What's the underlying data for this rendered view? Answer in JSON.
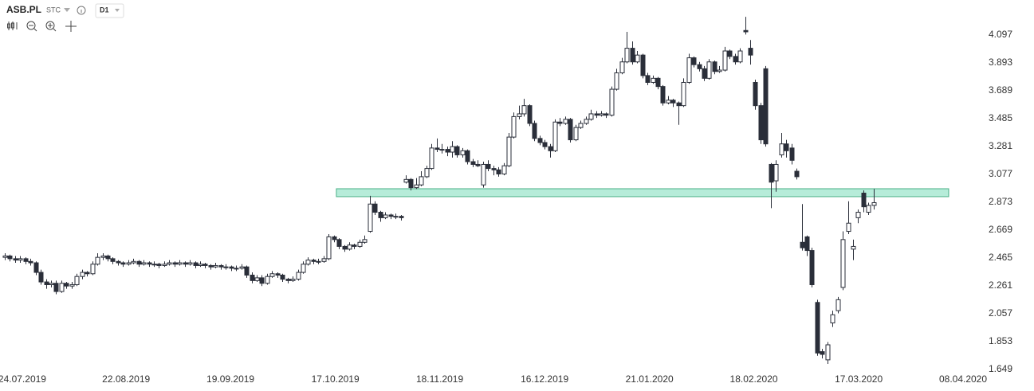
{
  "toolbar": {
    "symbol": "ASB.PL",
    "mode": "STC",
    "interval": "D1"
  },
  "chart_data": {
    "type": "candlestick",
    "colors": {
      "up": "#ffffff",
      "down": "#2a2e39",
      "outline": "#2a2e39",
      "zone_fill": "#b6ecd9",
      "zone_stroke": "#4aaf86"
    },
    "ylim": [
      1.492,
      4.353
    ],
    "yticks": [
      4.097,
      3.893,
      3.689,
      3.485,
      3.281,
      3.077,
      2.873,
      2.669,
      2.465,
      2.261,
      2.057,
      1.853,
      1.649
    ],
    "xlim": [
      -0.93,
      200.2
    ],
    "xticks": [
      {
        "value": 3.4,
        "label": "24.07.2019"
      },
      {
        "value": 23.6,
        "label": "22.08.2019"
      },
      {
        "value": 43.9,
        "label": "19.09.2019"
      },
      {
        "value": 64.3,
        "label": "17.10.2019"
      },
      {
        "value": 84.6,
        "label": "18.11.2019"
      },
      {
        "value": 105,
        "label": "16.12.2019"
      },
      {
        "value": 125.4,
        "label": "21.01.2020"
      },
      {
        "value": 145.7,
        "label": "18.02.2020"
      },
      {
        "value": 166.1,
        "label": "17.03.2020"
      },
      {
        "value": 186.4,
        "label": "08.04.2020"
      }
    ],
    "zone": {
      "x": [
        64.5,
        183.6
      ],
      "y": [
        2.914,
        2.972
      ]
    },
    "ohlc": [
      [
        2.47,
        2.5,
        2.45,
        2.48
      ],
      [
        2.48,
        2.49,
        2.44,
        2.46
      ],
      [
        2.46,
        2.48,
        2.43,
        2.45
      ],
      [
        2.45,
        2.48,
        2.43,
        2.46
      ],
      [
        2.46,
        2.47,
        2.42,
        2.44
      ],
      [
        2.44,
        2.46,
        2.41,
        2.43
      ],
      [
        2.43,
        2.44,
        2.34,
        2.36
      ],
      [
        2.36,
        2.38,
        2.27,
        2.29
      ],
      [
        2.29,
        2.31,
        2.24,
        2.27
      ],
      [
        2.27,
        2.3,
        2.25,
        2.28
      ],
      [
        2.28,
        2.3,
        2.2,
        2.22
      ],
      [
        2.22,
        2.3,
        2.21,
        2.28
      ],
      [
        2.28,
        2.29,
        2.24,
        2.26
      ],
      [
        2.26,
        2.29,
        2.24,
        2.27
      ],
      [
        2.27,
        2.35,
        2.26,
        2.33
      ],
      [
        2.33,
        2.38,
        2.31,
        2.36
      ],
      [
        2.36,
        2.37,
        2.33,
        2.35
      ],
      [
        2.35,
        2.44,
        2.34,
        2.42
      ],
      [
        2.42,
        2.5,
        2.41,
        2.47
      ],
      [
        2.47,
        2.5,
        2.45,
        2.48
      ],
      [
        2.48,
        2.49,
        2.44,
        2.46
      ],
      [
        2.46,
        2.47,
        2.42,
        2.44
      ],
      [
        2.44,
        2.45,
        2.41,
        2.43
      ],
      [
        2.43,
        2.44,
        2.4,
        2.42
      ],
      [
        2.42,
        2.45,
        2.41,
        2.43
      ],
      [
        2.43,
        2.46,
        2.42,
        2.44
      ],
      [
        2.44,
        2.45,
        2.4,
        2.42
      ],
      [
        2.42,
        2.45,
        2.41,
        2.43
      ],
      [
        2.43,
        2.44,
        2.4,
        2.42
      ],
      [
        2.42,
        2.44,
        2.4,
        2.42
      ],
      [
        2.42,
        2.43,
        2.39,
        2.41
      ],
      [
        2.41,
        2.44,
        2.4,
        2.42
      ],
      [
        2.42,
        2.45,
        2.41,
        2.43
      ],
      [
        2.43,
        2.44,
        2.4,
        2.42
      ],
      [
        2.42,
        2.45,
        2.41,
        2.43
      ],
      [
        2.43,
        2.44,
        2.4,
        2.42
      ],
      [
        2.42,
        2.45,
        2.41,
        2.43
      ],
      [
        2.43,
        2.44,
        2.39,
        2.41
      ],
      [
        2.41,
        2.44,
        2.4,
        2.42
      ],
      [
        2.42,
        2.43,
        2.39,
        2.41
      ],
      [
        2.41,
        2.42,
        2.38,
        2.4
      ],
      [
        2.4,
        2.43,
        2.39,
        2.41
      ],
      [
        2.41,
        2.42,
        2.38,
        2.4
      ],
      [
        2.4,
        2.42,
        2.38,
        2.4
      ],
      [
        2.4,
        2.41,
        2.37,
        2.39
      ],
      [
        2.39,
        2.41,
        2.37,
        2.39
      ],
      [
        2.39,
        2.42,
        2.38,
        2.4
      ],
      [
        2.4,
        2.41,
        2.32,
        2.34
      ],
      [
        2.34,
        2.36,
        2.28,
        2.3
      ],
      [
        2.3,
        2.34,
        2.29,
        2.32
      ],
      [
        2.32,
        2.34,
        2.26,
        2.28
      ],
      [
        2.28,
        2.35,
        2.27,
        2.33
      ],
      [
        2.33,
        2.37,
        2.32,
        2.35
      ],
      [
        2.35,
        2.36,
        2.32,
        2.34
      ],
      [
        2.34,
        2.35,
        2.29,
        2.31
      ],
      [
        2.31,
        2.32,
        2.28,
        2.3
      ],
      [
        2.3,
        2.33,
        2.29,
        2.31
      ],
      [
        2.31,
        2.38,
        2.3,
        2.36
      ],
      [
        2.36,
        2.44,
        2.35,
        2.42
      ],
      [
        2.42,
        2.47,
        2.41,
        2.45
      ],
      [
        2.45,
        2.46,
        2.42,
        2.44
      ],
      [
        2.44,
        2.46,
        2.42,
        2.44
      ],
      [
        2.44,
        2.48,
        2.43,
        2.46
      ],
      [
        2.46,
        2.64,
        2.45,
        2.62
      ],
      [
        2.62,
        2.63,
        2.58,
        2.6
      ],
      [
        2.6,
        2.61,
        2.53,
        2.55
      ],
      [
        2.55,
        2.56,
        2.51,
        2.53
      ],
      [
        2.53,
        2.58,
        2.52,
        2.56
      ],
      [
        2.56,
        2.57,
        2.53,
        2.55
      ],
      [
        2.55,
        2.6,
        2.54,
        2.58
      ],
      [
        2.58,
        2.63,
        2.57,
        2.6
      ],
      [
        2.66,
        2.92,
        2.65,
        2.86
      ],
      [
        2.86,
        2.88,
        2.78,
        2.8
      ],
      [
        2.8,
        2.81,
        2.73,
        2.76
      ],
      [
        2.76,
        2.8,
        2.75,
        2.78
      ],
      [
        2.78,
        2.79,
        2.75,
        2.77
      ],
      [
        2.77,
        2.79,
        2.75,
        2.77
      ],
      [
        2.77,
        2.78,
        2.74,
        2.76
      ],
      [
        3.02,
        3.07,
        3.01,
        3.04
      ],
      [
        3.04,
        3.05,
        2.96,
        2.98
      ],
      [
        2.98,
        3.05,
        2.97,
        3.0
      ],
      [
        3.0,
        3.1,
        2.99,
        3.06
      ],
      [
        3.06,
        3.14,
        3.05,
        3.12
      ],
      [
        3.12,
        3.3,
        3.11,
        3.27
      ],
      [
        3.27,
        3.34,
        3.24,
        3.26
      ],
      [
        3.26,
        3.3,
        3.23,
        3.26
      ],
      [
        3.26,
        3.28,
        3.21,
        3.24
      ],
      [
        3.24,
        3.32,
        3.2,
        3.28
      ],
      [
        3.28,
        3.29,
        3.2,
        3.22
      ],
      [
        3.22,
        3.27,
        3.2,
        3.25
      ],
      [
        3.25,
        3.26,
        3.15,
        3.17
      ],
      [
        3.17,
        3.19,
        3.13,
        3.15
      ],
      [
        3.15,
        3.18,
        3.13,
        3.14
      ],
      [
        3.0,
        3.17,
        2.98,
        3.15
      ],
      [
        3.15,
        3.18,
        3.1,
        3.12
      ],
      [
        3.12,
        3.14,
        3.07,
        3.11
      ],
      [
        3.11,
        3.13,
        3.06,
        3.08
      ],
      [
        3.08,
        3.16,
        3.07,
        3.14
      ],
      [
        3.14,
        3.38,
        3.13,
        3.35
      ],
      [
        3.35,
        3.53,
        3.34,
        3.5
      ],
      [
        3.5,
        3.58,
        3.48,
        3.52
      ],
      [
        3.52,
        3.63,
        3.5,
        3.58
      ],
      [
        3.58,
        3.59,
        3.43,
        3.45
      ],
      [
        3.45,
        3.47,
        3.32,
        3.34
      ],
      [
        3.34,
        3.36,
        3.29,
        3.31
      ],
      [
        3.31,
        3.33,
        3.26,
        3.28
      ],
      [
        3.28,
        3.3,
        3.2,
        3.25
      ],
      [
        3.25,
        3.48,
        3.24,
        3.46
      ],
      [
        3.46,
        3.49,
        3.43,
        3.45
      ],
      [
        3.45,
        3.5,
        3.44,
        3.48
      ],
      [
        3.48,
        3.49,
        3.31,
        3.33
      ],
      [
        3.33,
        3.44,
        3.32,
        3.42
      ],
      [
        3.42,
        3.47,
        3.41,
        3.45
      ],
      [
        3.45,
        3.5,
        3.44,
        3.48
      ],
      [
        3.48,
        3.55,
        3.47,
        3.52
      ],
      [
        3.52,
        3.54,
        3.49,
        3.51
      ],
      [
        3.51,
        3.54,
        3.5,
        3.52
      ],
      [
        3.52,
        3.53,
        3.49,
        3.51
      ],
      [
        3.51,
        3.72,
        3.5,
        3.7
      ],
      [
        3.7,
        3.85,
        3.69,
        3.82
      ],
      [
        3.82,
        3.93,
        3.81,
        3.9
      ],
      [
        3.9,
        4.12,
        3.89,
        4.0
      ],
      [
        4.0,
        4.05,
        3.88,
        3.9
      ],
      [
        3.9,
        3.98,
        3.89,
        3.95
      ],
      [
        3.95,
        3.96,
        3.78,
        3.8
      ],
      [
        3.8,
        3.82,
        3.73,
        3.75
      ],
      [
        3.75,
        3.8,
        3.74,
        3.78
      ],
      [
        3.78,
        3.79,
        3.7,
        3.72
      ],
      [
        3.72,
        3.73,
        3.58,
        3.6
      ],
      [
        3.6,
        3.65,
        3.59,
        3.62
      ],
      [
        3.62,
        3.63,
        3.57,
        3.6
      ],
      [
        3.6,
        3.61,
        3.44,
        3.58
      ],
      [
        3.58,
        3.78,
        3.57,
        3.75
      ],
      [
        3.75,
        3.96,
        3.74,
        3.93
      ],
      [
        3.93,
        3.94,
        3.86,
        3.88
      ],
      [
        3.88,
        3.9,
        3.83,
        3.85
      ],
      [
        3.85,
        3.87,
        3.76,
        3.78
      ],
      [
        3.78,
        3.92,
        3.77,
        3.9
      ],
      [
        3.9,
        3.91,
        3.81,
        3.83
      ],
      [
        3.83,
        3.87,
        3.82,
        3.84
      ],
      [
        3.84,
        4.01,
        3.83,
        3.98
      ],
      [
        3.98,
        3.99,
        3.92,
        3.94
      ],
      [
        3.94,
        3.96,
        3.88,
        3.9
      ],
      [
        3.9,
        4.0,
        3.89,
        3.98
      ],
      [
        4.13,
        4.23,
        4.1,
        4.12
      ],
      [
        4.0,
        4.06,
        3.88,
        3.95
      ],
      [
        3.75,
        3.77,
        3.55,
        3.58
      ],
      [
        3.58,
        3.6,
        3.3,
        3.33
      ],
      [
        3.85,
        3.87,
        3.28,
        3.3
      ],
      [
        3.15,
        3.16,
        2.83,
        3.02
      ],
      [
        3.03,
        3.18,
        2.95,
        3.15
      ],
      [
        3.22,
        3.38,
        3.2,
        3.3
      ],
      [
        3.3,
        3.33,
        3.2,
        3.25
      ],
      [
        3.27,
        3.3,
        3.15,
        3.18
      ],
      [
        3.1,
        3.12,
        3.04,
        3.06
      ],
      [
        2.58,
        2.86,
        2.52,
        2.54
      ],
      [
        2.62,
        2.63,
        2.48,
        2.52
      ],
      [
        2.52,
        2.54,
        2.25,
        2.27
      ],
      [
        2.14,
        2.16,
        1.75,
        1.77
      ],
      [
        1.78,
        1.8,
        1.73,
        1.76
      ],
      [
        1.72,
        1.85,
        1.69,
        1.83
      ],
      [
        1.99,
        2.08,
        1.96,
        2.05
      ],
      [
        2.08,
        2.18,
        2.06,
        2.16
      ],
      [
        2.25,
        2.66,
        2.23,
        2.6
      ],
      [
        2.66,
        2.88,
        2.64,
        2.72
      ],
      [
        2.53,
        2.6,
        2.45,
        2.55
      ],
      [
        2.76,
        2.82,
        2.72,
        2.8
      ],
      [
        2.94,
        2.96,
        2.8,
        2.84
      ],
      [
        2.8,
        2.87,
        2.78,
        2.85
      ],
      [
        2.85,
        2.97,
        2.82,
        2.87
      ]
    ]
  }
}
